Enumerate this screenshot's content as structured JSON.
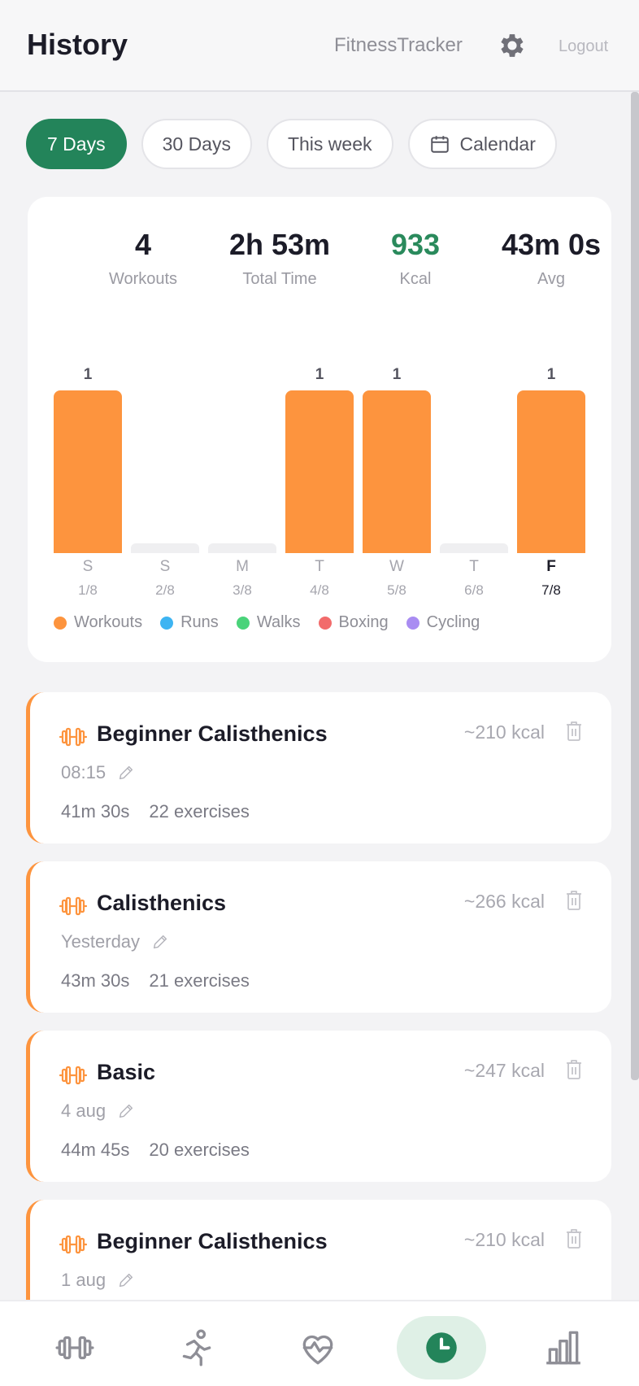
{
  "header": {
    "title": "History",
    "app_name": "FitnessTracker",
    "logout_label": "Logout"
  },
  "filters": [
    {
      "label": "7 Days",
      "active": true
    },
    {
      "label": "30 Days",
      "active": false
    },
    {
      "label": "This week",
      "active": false
    },
    {
      "label": "Calendar",
      "active": false
    }
  ],
  "summary": {
    "workouts": {
      "value": "4",
      "label": "Workouts"
    },
    "total_time": {
      "value": "2h 53m",
      "label": "Total Time"
    },
    "kcal": {
      "value": "933",
      "label": "Kcal"
    },
    "avg": {
      "value": "43m 0s",
      "label": "Avg"
    }
  },
  "chart_data": {
    "type": "bar",
    "categories": [
      "S",
      "S",
      "M",
      "T",
      "W",
      "T",
      "F"
    ],
    "dates": [
      "1/8",
      "2/8",
      "3/8",
      "4/8",
      "5/8",
      "6/8",
      "7/8"
    ],
    "values": [
      1,
      0,
      0,
      1,
      1,
      0,
      1
    ],
    "value_labels": [
      "1",
      "",
      "",
      "1",
      "1",
      "",
      "1"
    ],
    "highlighted_index": 6,
    "bar_color": "#fd943e",
    "legend": [
      {
        "name": "Workouts",
        "color": "#fd943e"
      },
      {
        "name": "Runs",
        "color": "#3db4f2"
      },
      {
        "name": "Walks",
        "color": "#4ad37a"
      },
      {
        "name": "Boxing",
        "color": "#f26b6b"
      },
      {
        "name": "Cycling",
        "color": "#a98cf2"
      }
    ],
    "legend_position": "bottom"
  },
  "workouts": [
    {
      "name": "Beginner Calisthenics",
      "kcal": "~210 kcal",
      "when": "08:15",
      "duration": "41m 30s",
      "exercises": "22 exercises"
    },
    {
      "name": "Calisthenics",
      "kcal": "~266 kcal",
      "when": "Yesterday",
      "duration": "43m 30s",
      "exercises": "21 exercises"
    },
    {
      "name": "Basic",
      "kcal": "~247 kcal",
      "when": "4 aug",
      "duration": "44m 45s",
      "exercises": "20 exercises"
    },
    {
      "name": "Beginner Calisthenics",
      "kcal": "~210 kcal",
      "when": "1 aug",
      "duration": "",
      "exercises": ""
    }
  ],
  "nav": [
    {
      "icon": "dumbbell-icon",
      "active": false
    },
    {
      "icon": "runner-icon",
      "active": false
    },
    {
      "icon": "heart-pulse-icon",
      "active": false
    },
    {
      "icon": "clock-icon",
      "active": true
    },
    {
      "icon": "bar-chart-icon",
      "active": false
    }
  ],
  "colors": {
    "accent": "#23845a",
    "workout": "#fd943e"
  }
}
